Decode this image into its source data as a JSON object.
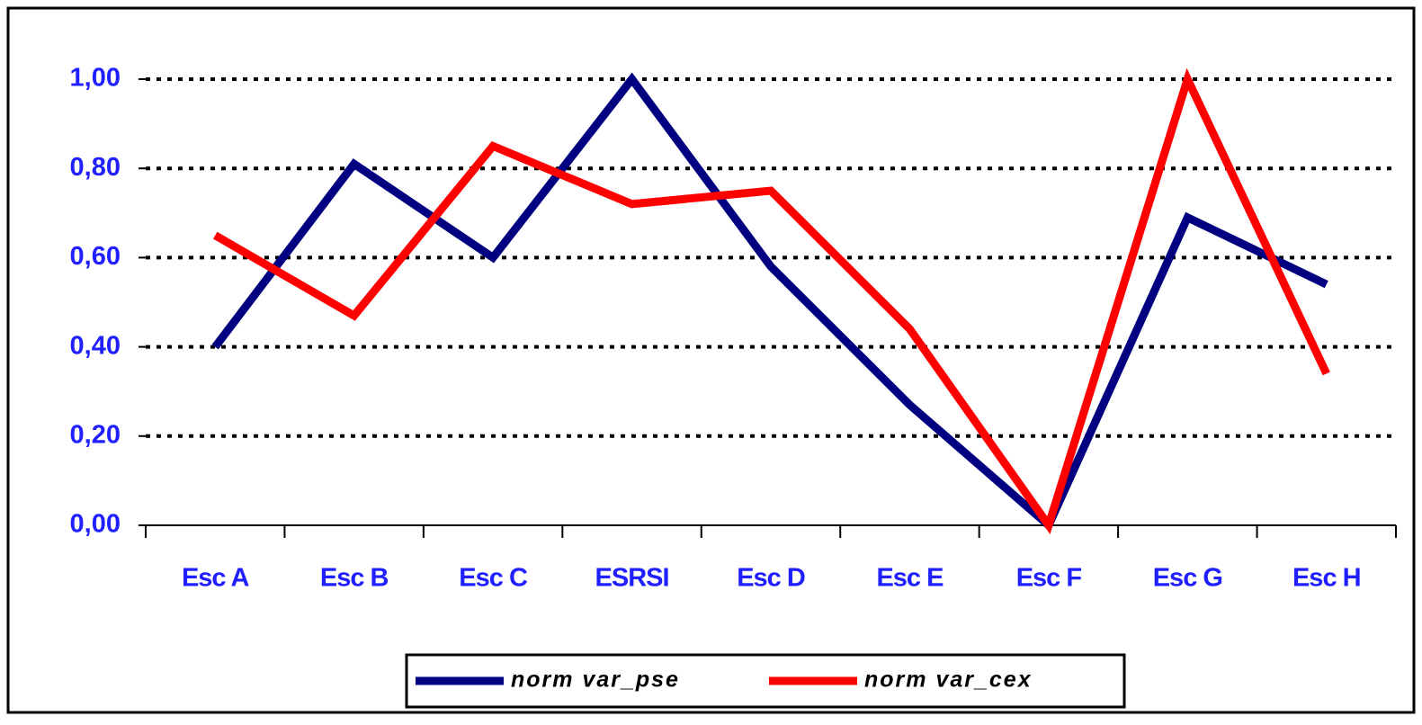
{
  "chart_data": {
    "type": "line",
    "categories": [
      "Esc A",
      "Esc B",
      "Esc C",
      "ESRSI",
      "Esc D",
      "Esc E",
      "Esc F",
      "Esc G",
      "Esc H"
    ],
    "series": [
      {
        "name": "norm var_pse",
        "color": "#000080",
        "values": [
          0.4,
          0.81,
          0.6,
          1.0,
          0.58,
          0.27,
          0.0,
          0.69,
          0.54
        ]
      },
      {
        "name": "norm var_cex",
        "color": "#ff0000",
        "values": [
          0.65,
          0.47,
          0.85,
          0.72,
          0.75,
          0.44,
          0.0,
          1.0,
          0.34
        ]
      }
    ],
    "ylim": [
      0,
      1
    ],
    "yticks": [
      {
        "value": 0,
        "label": "0,00"
      },
      {
        "value": 0.2,
        "label": "0,20"
      },
      {
        "value": 0.4,
        "label": "0,40"
      },
      {
        "value": 0.6,
        "label": "0,60"
      },
      {
        "value": 0.8,
        "label": "0,80"
      },
      {
        "value": 1,
        "label": "1,00"
      }
    ],
    "grid": true,
    "legend": "bottom"
  }
}
